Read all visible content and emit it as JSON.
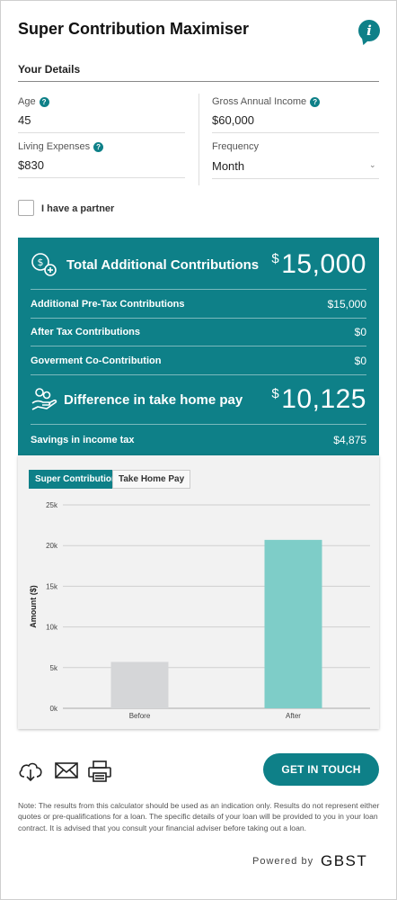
{
  "header": {
    "title": "Super Contribution Maximiser"
  },
  "details": {
    "section_title": "Your Details",
    "age_label": "Age",
    "age_value": "45",
    "income_label": "Gross Annual Income",
    "income_value": "$60,000",
    "expenses_label": "Living Expenses",
    "expenses_value": "$830",
    "frequency_label": "Frequency",
    "frequency_value": "Month",
    "partner_label": "I have a partner"
  },
  "results": {
    "total_label": "Total Additional Contributions",
    "total_currency": "$",
    "total_value": "15,000",
    "rows": [
      {
        "label": "Additional Pre-Tax Contributions",
        "value": "$15,000"
      },
      {
        "label": "After Tax Contributions",
        "value": "$0"
      },
      {
        "label": "Goverment Co-Contribution",
        "value": "$0"
      }
    ],
    "diff_label": "Difference in take home pay",
    "diff_currency": "$",
    "diff_value": "10,125",
    "savings_label": "Savings in income tax",
    "savings_value": "$4,875"
  },
  "tabs": {
    "active": "Super Contributions",
    "inactive": "Take Home Pay"
  },
  "chart_data": {
    "type": "bar",
    "categories": [
      "Before",
      "After"
    ],
    "values": [
      5700,
      20700
    ],
    "colors": [
      "#d5d6d8",
      "#7ecdc8"
    ],
    "ylabel": "Amount ($)",
    "ylim": [
      0,
      25000
    ],
    "yticks": [
      0,
      5000,
      10000,
      15000,
      20000,
      25000
    ],
    "ytick_labels": [
      "0k",
      "5k",
      "10k",
      "15k",
      "20k",
      "25k"
    ],
    "grid": true
  },
  "actions": {
    "cta_label": "GET IN TOUCH"
  },
  "footer": {
    "note": "Note: The results from this calculator should be used as an indication only. Results do not represent either quotes or pre-qualifications for a loan. The specific details of your loan will be provided to you in your loan contract. It is advised that you consult your financial adviser before taking out a loan.",
    "powered_by": "Powered by",
    "brand": "GBST"
  },
  "colors": {
    "accent": "#0e8088",
    "bar_before": "#d5d6d8",
    "bar_after": "#7ecdc8"
  }
}
